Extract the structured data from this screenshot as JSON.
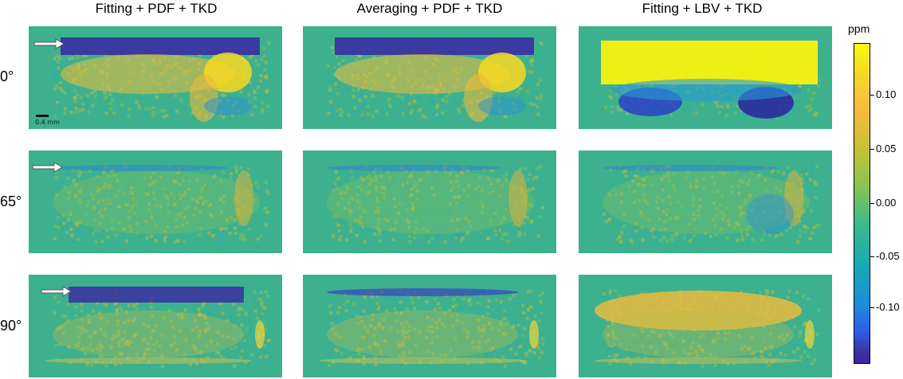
{
  "columns": [
    {
      "title": "Fitting + PDF + TKD"
    },
    {
      "title": "Averaging + PDF + TKD"
    },
    {
      "title": "Fitting + LBV + TKD"
    }
  ],
  "rows": [
    {
      "label": "0°"
    },
    {
      "label": "65°"
    },
    {
      "label": "90°"
    }
  ],
  "scale_bar": {
    "label": "0.4 mm"
  },
  "colorbar": {
    "unit": "ppm",
    "ticks": [
      "0.10",
      "0.05",
      "0.00",
      "-0.05",
      "-0.10"
    ],
    "colormap": "parula"
  },
  "colors": {
    "background_value": "#3db18e",
    "positive_max": "#f9fb0e",
    "negative_max": "#3e26a8"
  }
}
